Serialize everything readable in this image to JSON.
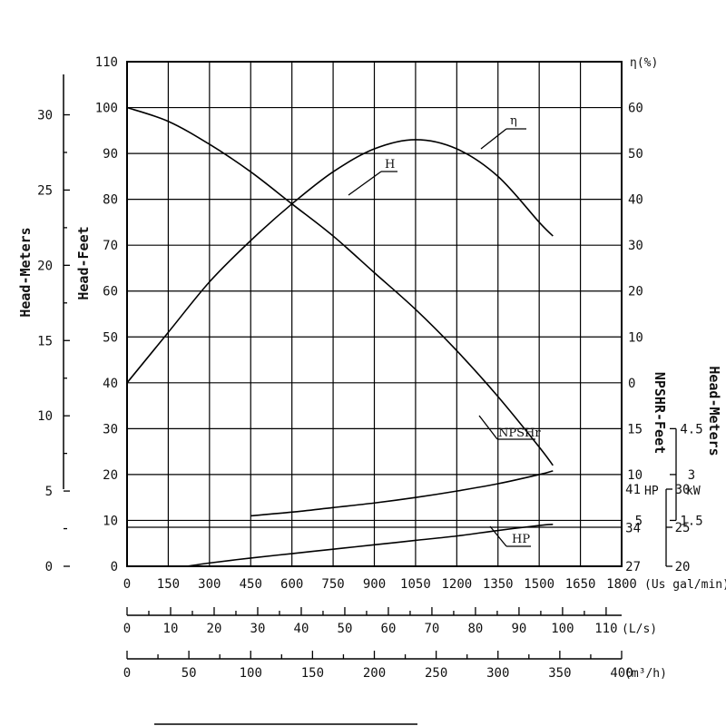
{
  "chart_data": {
    "type": "line",
    "x_axes": {
      "primary": {
        "unit": "(Us gal/min)",
        "ticks": [
          "0",
          "150",
          "300",
          "450",
          "600",
          "750",
          "900",
          "1050",
          "1200",
          "1350",
          "1500",
          "1650",
          "1800"
        ]
      },
      "liters": {
        "unit": "(L/s)",
        "ticks": [
          "0",
          "10",
          "20",
          "30",
          "40",
          "50",
          "60",
          "70",
          "80",
          "90",
          "100",
          "110"
        ]
      },
      "cubic": {
        "unit": "(m³/h)",
        "ticks": [
          "0",
          "50",
          "100",
          "150",
          "200",
          "250",
          "300",
          "350",
          "400"
        ]
      }
    },
    "y_axes": {
      "head_feet": {
        "label": "Head-Feet",
        "ticks": [
          "0",
          "10",
          "20",
          "30",
          "40",
          "50",
          "60",
          "70",
          "80",
          "90",
          "100",
          "110"
        ],
        "range": [
          0,
          110
        ]
      },
      "head_meters": {
        "label": "Head-Meters",
        "ticks": [
          "0",
          "5",
          "10",
          "15",
          "20",
          "25",
          "30"
        ]
      },
      "efficiency": {
        "label": "η(%)",
        "ticks": [
          "0",
          "10",
          "20",
          "30",
          "40",
          "50",
          "60"
        ],
        "range": [
          0,
          60
        ]
      },
      "npshr_feet": {
        "label": "NPSHR-Feet",
        "ticks": [
          "5",
          "10",
          "15"
        ],
        "range": [
          5,
          15
        ]
      },
      "npshr_meters": {
        "label": "Head-Meters",
        "ticks": [
          "1.5",
          "3",
          "4.5"
        ]
      },
      "hp": {
        "unit": "HP",
        "ticks": [
          "27",
          "34",
          "41"
        ],
        "range": [
          27,
          41
        ]
      },
      "kw": {
        "unit": "kW",
        "ticks": [
          "20",
          "25",
          "30"
        ]
      }
    },
    "series": [
      {
        "name": "H",
        "axis": "head_feet",
        "x": [
          0,
          150,
          300,
          450,
          600,
          750,
          900,
          1050,
          1200,
          1350,
          1500,
          1550
        ],
        "y": [
          100,
          97,
          92,
          86,
          79,
          72,
          64,
          56,
          47,
          37,
          26,
          22
        ]
      },
      {
        "name": "η",
        "axis": "efficiency",
        "x": [
          0,
          150,
          300,
          450,
          600,
          750,
          900,
          1050,
          1200,
          1350,
          1500,
          1550
        ],
        "y": [
          0,
          11,
          22,
          31,
          39,
          46,
          51,
          53,
          51,
          45,
          35,
          32
        ]
      },
      {
        "name": "NPSHr",
        "axis": "npshr_feet",
        "x": [
          450,
          600,
          750,
          900,
          1050,
          1200,
          1350,
          1500,
          1550
        ],
        "y": [
          5.5,
          5.9,
          6.4,
          6.9,
          7.5,
          8.2,
          9.0,
          10.0,
          10.4
        ]
      },
      {
        "name": "HP",
        "axis": "hp",
        "x": [
          220,
          300,
          450,
          600,
          750,
          900,
          1050,
          1200,
          1350,
          1500,
          1550
        ],
        "y": [
          27,
          27.6,
          28.5,
          29.3,
          30.1,
          30.9,
          31.7,
          32.5,
          33.5,
          34.4,
          34.6
        ]
      }
    ],
    "grid": true
  }
}
